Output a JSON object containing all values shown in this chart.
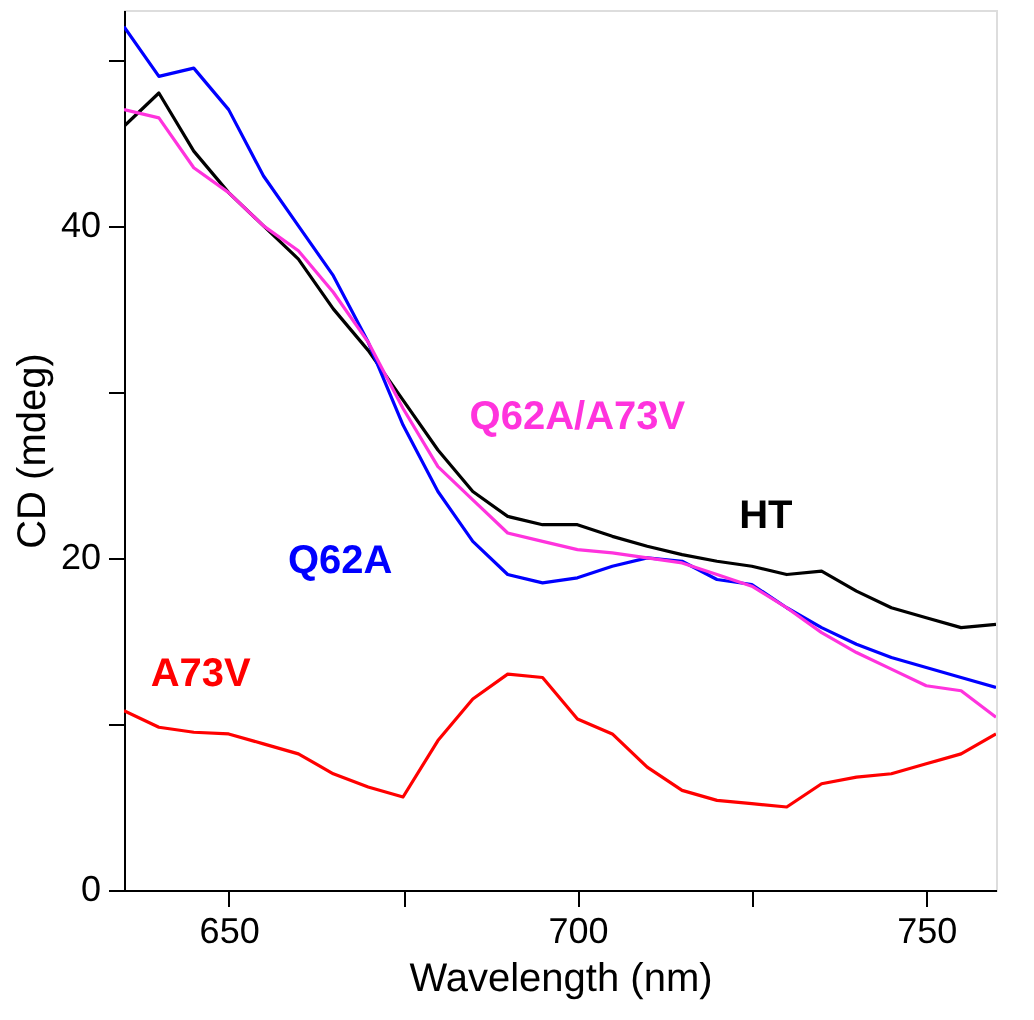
{
  "chart_data": {
    "type": "line",
    "xlabel": "Wavelength (nm)",
    "ylabel": "CD (mdeg)",
    "x": [
      635,
      640,
      645,
      650,
      655,
      660,
      665,
      670,
      675,
      680,
      685,
      690,
      695,
      700,
      705,
      710,
      715,
      720,
      725,
      730,
      735,
      740,
      745,
      750,
      755,
      760
    ],
    "series": [
      {
        "name": "HT",
        "color": "#000000",
        "values": [
          46,
          48,
          44.5,
          42,
          40,
          38,
          35,
          32.5,
          29.5,
          26.5,
          24,
          22.5,
          22,
          22,
          21.3,
          20.7,
          20.2,
          19.8,
          19.5,
          19,
          19.2,
          18,
          17,
          16.4,
          15.8,
          16
        ]
      },
      {
        "name": "Q62A",
        "color": "#0000ff",
        "values": [
          52,
          49,
          49.5,
          47,
          43,
          40,
          37,
          33,
          28,
          24,
          21,
          19,
          18.5,
          18.8,
          19.5,
          20,
          19.8,
          18.7,
          18.4,
          17,
          15.8,
          14.8,
          14,
          13.4,
          12.8,
          12.2
        ]
      },
      {
        "name": "Q62A/A73V",
        "color": "#ff33dd",
        "values": [
          47,
          46.5,
          43.5,
          42,
          40,
          38.5,
          36,
          33,
          29,
          25.5,
          23.5,
          21.5,
          21,
          20.5,
          20.3,
          20,
          19.7,
          19,
          18.3,
          17,
          15.5,
          14.3,
          13.3,
          12.3,
          12,
          10.4
        ]
      },
      {
        "name": "A73V",
        "color": "#ff0000",
        "values": [
          10.8,
          9.8,
          9.5,
          9.4,
          8.8,
          8.2,
          7,
          6.2,
          5.6,
          9,
          11.5,
          13,
          12.8,
          10.3,
          9.4,
          7.4,
          6,
          5.4,
          5.2,
          5,
          6.4,
          6.8,
          7,
          7.6,
          8.2,
          9.4
        ]
      }
    ],
    "xlim": [
      635,
      760
    ],
    "ylim": [
      0,
      53
    ],
    "xticks": [
      650,
      {
        "value": 675,
        "label": null
      },
      700,
      {
        "value": 725,
        "label": null
      },
      750
    ],
    "yticks": [
      0,
      {
        "value": 10,
        "label": null
      },
      20,
      {
        "value": 30,
        "label": null
      },
      40,
      {
        "value": 50,
        "label": null
      }
    ],
    "grid": false,
    "legend": false,
    "marker": "none",
    "line_style": "solid"
  }
}
